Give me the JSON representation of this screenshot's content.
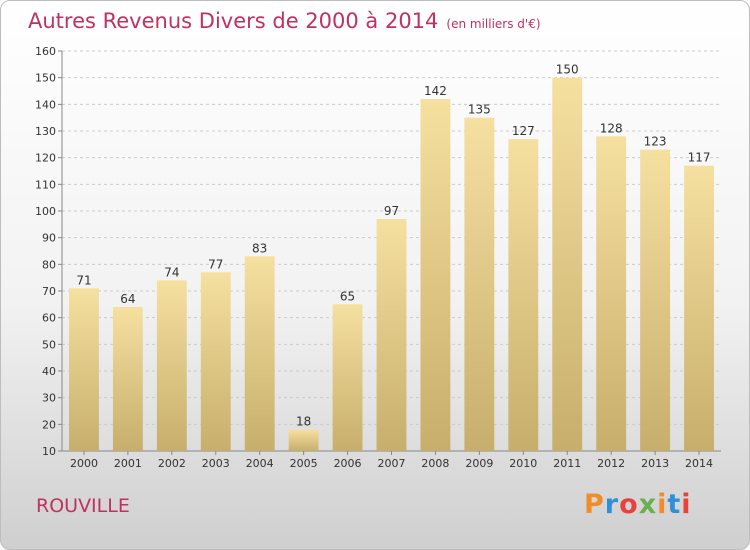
{
  "header": {
    "title": "Autres Revenus Divers de 2000 à 2014",
    "unit": "(en milliers d'€)"
  },
  "footer": {
    "place": "ROUVILLE",
    "logo_text": "Proxiti"
  },
  "colors": {
    "title": "#c0315f",
    "bar_light": "#f6e0a0",
    "bar_dark": "#c7ae6c",
    "grid": "#cccccc",
    "logo": [
      "#f28c28",
      "#2f8fd8",
      "#e8433a",
      "#6ab04c",
      "#f28c28",
      "#2f8fd8",
      "#e8433a"
    ]
  },
  "chart_data": {
    "type": "bar",
    "categories": [
      "2000",
      "2001",
      "2002",
      "2003",
      "2004",
      "2005",
      "2006",
      "2007",
      "2008",
      "2009",
      "2010",
      "2011",
      "2012",
      "2013",
      "2014"
    ],
    "values": [
      71,
      64,
      74,
      77,
      83,
      18,
      65,
      97,
      142,
      135,
      127,
      150,
      128,
      123,
      117
    ],
    "ylim": [
      10,
      160
    ],
    "yticks": [
      10,
      20,
      30,
      40,
      50,
      60,
      70,
      80,
      90,
      100,
      110,
      120,
      130,
      140,
      150,
      160
    ],
    "grid": true,
    "xlabel": "",
    "ylabel": ""
  }
}
